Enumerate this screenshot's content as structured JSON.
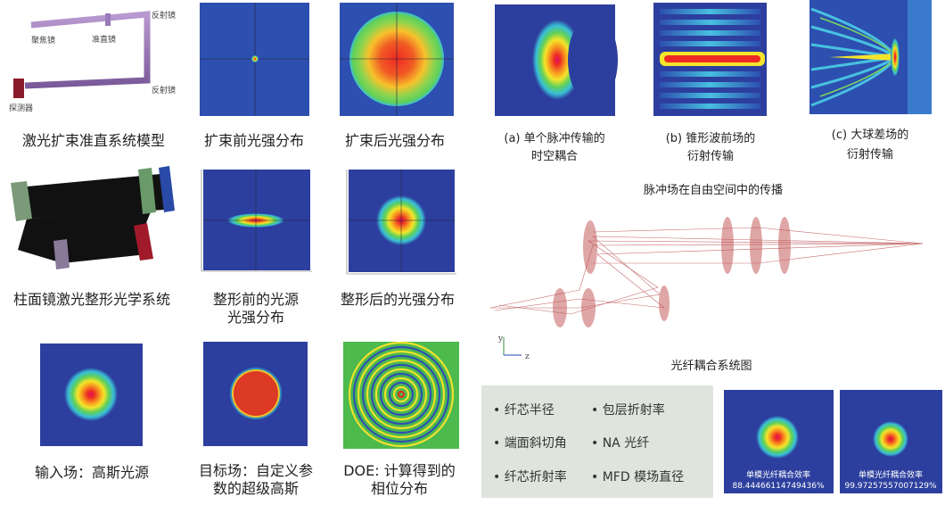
{
  "beam_model": {
    "labels": [
      "反射镜",
      "聚焦镜",
      "准直镜",
      "反射镜",
      "探测器"
    ],
    "caption": "激光扩束准直系统模型"
  },
  "before_expand": {
    "caption": "扩束前光强分布"
  },
  "after_expand": {
    "caption": "扩束后光强分布"
  },
  "pulse": {
    "panels": [
      [
        "(a) 单个脉冲传输的",
        "时空耦合"
      ],
      [
        "(b) 锥形波前场的",
        "衍射传输"
      ],
      [
        "(c) 大球差场的",
        "衍射传输"
      ]
    ],
    "caption": "脉冲场在自由空间中的传播"
  },
  "cyl_system": {
    "caption": "柱面镜激光整形光学系统"
  },
  "before_shaping": {
    "caption": [
      "整形前的光源",
      "光强分布"
    ]
  },
  "after_shaping": {
    "caption": "整形后的光强分布"
  },
  "fiber_system": {
    "axes": [
      "y",
      "z"
    ],
    "caption": "光纤耦合系统图"
  },
  "input_field": {
    "caption": "输入场：高斯光源"
  },
  "target_field": {
    "caption": [
      "目标场：自定义参",
      "数的超级高斯"
    ]
  },
  "doe": {
    "caption": [
      "DOE: 计算得到的",
      "相位分布"
    ]
  },
  "parameters": [
    "• 纤芯半径",
    "• 包层折射率",
    "• 端面斜切角",
    "• NA 光纤",
    "• 纤芯折射率",
    "• MFD 模场直径"
  ],
  "results": [
    {
      "title": "单模光纤耦合效率",
      "value": "88.44466114749436%"
    },
    {
      "title": "单模光纤耦合效率",
      "value": "99.97257557007129%"
    }
  ]
}
